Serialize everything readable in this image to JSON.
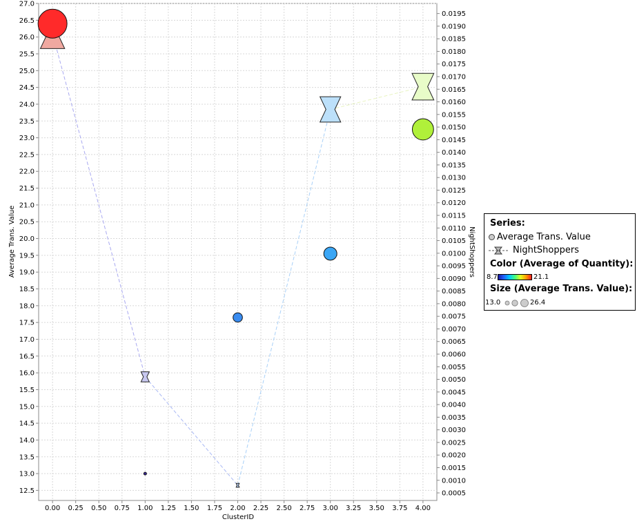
{
  "chart_data": {
    "type": "scatter",
    "x_label": "ClusterID",
    "y_label": "Average Trans. Value",
    "y2_label": "NightShoppers",
    "x_range": [
      -0.15,
      4.15
    ],
    "y_range": [
      12.2,
      27.0
    ],
    "y2_range": [
      0.0002,
      0.0199
    ],
    "x_ticks": [
      "0.00",
      "0.25",
      "0.50",
      "0.75",
      "1.00",
      "1.25",
      "1.50",
      "1.75",
      "2.00",
      "2.25",
      "2.50",
      "2.75",
      "3.00",
      "3.25",
      "3.50",
      "3.75",
      "4.00"
    ],
    "y_ticks": [
      "12.5",
      "13.0",
      "13.5",
      "14.0",
      "14.5",
      "15.0",
      "15.5",
      "16.0",
      "16.5",
      "17.0",
      "17.5",
      "18.0",
      "18.5",
      "19.0",
      "19.5",
      "20.0",
      "20.5",
      "21.0",
      "21.5",
      "22.0",
      "22.5",
      "23.0",
      "23.5",
      "24.0",
      "24.5",
      "25.0",
      "25.5",
      "26.0",
      "26.5",
      "27.0"
    ],
    "y2_ticks": [
      "0.0005",
      "0.0010",
      "0.0015",
      "0.0020",
      "0.0025",
      "0.0030",
      "0.0035",
      "0.0040",
      "0.0045",
      "0.0050",
      "0.0055",
      "0.0060",
      "0.0065",
      "0.0070",
      "0.0075",
      "0.0080",
      "0.0085",
      "0.0090",
      "0.0095",
      "0.0100",
      "0.0105",
      "0.0110",
      "0.0115",
      "0.0120",
      "0.0125",
      "0.0130",
      "0.0135",
      "0.0140",
      "0.0145",
      "0.0150",
      "0.0155",
      "0.0160",
      "0.0165",
      "0.0170",
      "0.0175",
      "0.0180",
      "0.0185",
      "0.0190",
      "0.0195"
    ],
    "grid": true,
    "series": [
      {
        "name": "Average Trans. Value",
        "marker": "circle",
        "axis": "left",
        "points": [
          {
            "x": 0,
            "y": 26.4,
            "quantity": 21.1,
            "color": "#ff2a2a"
          },
          {
            "x": 1,
            "y": 13.0,
            "quantity": 8.7,
            "color": "#3a2a9a"
          },
          {
            "x": 2,
            "y": 17.65,
            "quantity": 10.5,
            "color": "#3a8cf0"
          },
          {
            "x": 3,
            "y": 19.55,
            "quantity": 11.0,
            "color": "#3aa6f5"
          },
          {
            "x": 4,
            "y": 23.25,
            "quantity": 15.5,
            "color": "#b0f03a"
          }
        ]
      },
      {
        "name": "NightShoppers",
        "marker": "hourglass",
        "axis": "right",
        "points": [
          {
            "x": 0,
            "y": 0.0187,
            "color": "#f0a8a0"
          },
          {
            "x": 1,
            "y": 0.0051,
            "color": "#c8c8f0"
          },
          {
            "x": 2,
            "y": 0.0008,
            "color": "#bcd4f8"
          },
          {
            "x": 3,
            "y": 0.0157,
            "color": "#bce0fa"
          },
          {
            "x": 4,
            "y": 0.0166,
            "color": "#e8fcc8"
          }
        ],
        "line_colors": [
          "#a8a8f0",
          "#a8b8f4",
          "#a8d0f8",
          "#e8f4c0"
        ]
      }
    ],
    "legend": {
      "position": "right",
      "series_title": "Series:",
      "color_title": "Color (Average of Quantity):",
      "color_min": "8.7",
      "color_max": "21.1",
      "size_title": "Size (Average Trans. Value):",
      "size_min": "13.0",
      "size_max": "26.4"
    }
  }
}
